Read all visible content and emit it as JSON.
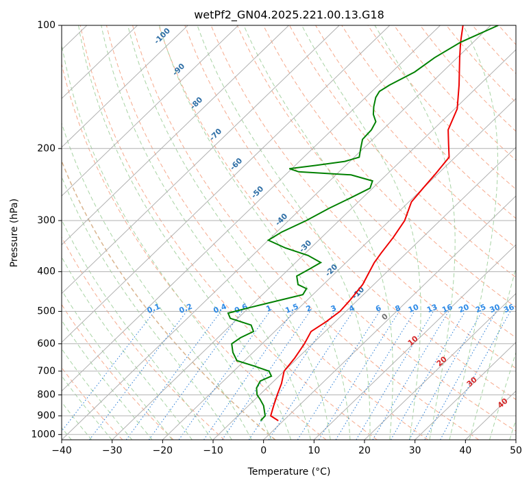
{
  "chart_data": {
    "type": "skew-t",
    "title": "wetPf2_GN04.2025.221.00.13.G18",
    "xlabel": "Temperature (°C)",
    "ylabel": "Pressure (hPa)",
    "xlim": [
      -40,
      50
    ],
    "ylim": [
      1030,
      100
    ],
    "x_ticks": [
      -40,
      -30,
      -20,
      -10,
      0,
      10,
      20,
      30,
      40,
      50
    ],
    "y_ticks": [
      100,
      200,
      300,
      400,
      500,
      600,
      700,
      800,
      900,
      1000
    ],
    "grid": true,
    "series": [
      {
        "role": "temperature",
        "color": "#ee0000",
        "points": [
          [
            925,
            -1.0
          ],
          [
            900,
            -3.5
          ],
          [
            850,
            -5.0
          ],
          [
            800,
            -6.5
          ],
          [
            750,
            -8.0
          ],
          [
            700,
            -10.0
          ],
          [
            650,
            -10.6
          ],
          [
            600,
            -11.6
          ],
          [
            560,
            -12.8
          ],
          [
            530,
            -11.8
          ],
          [
            500,
            -11.2
          ],
          [
            470,
            -11.5
          ],
          [
            430,
            -12.2
          ],
          [
            400,
            -13.5
          ],
          [
            380,
            -14.4
          ],
          [
            360,
            -15.0
          ],
          [
            330,
            -15.8
          ],
          [
            300,
            -17.0
          ],
          [
            270,
            -19.5
          ],
          [
            250,
            -20.0
          ],
          [
            230,
            -20.5
          ],
          [
            210,
            -21.2
          ],
          [
            195,
            -24.0
          ],
          [
            180,
            -27.0
          ],
          [
            160,
            -29.5
          ],
          [
            140,
            -34.0
          ],
          [
            120,
            -39.5
          ],
          [
            110,
            -42.5
          ],
          [
            100,
            -45.5
          ]
        ]
      },
      {
        "role": "dewpoint",
        "color": "#008000",
        "points": [
          [
            925,
            -4.5
          ],
          [
            900,
            -4.6
          ],
          [
            850,
            -7.0
          ],
          [
            820,
            -9.0
          ],
          [
            800,
            -10.5
          ],
          [
            770,
            -12.0
          ],
          [
            740,
            -12.7
          ],
          [
            720,
            -11.5
          ],
          [
            700,
            -13.0
          ],
          [
            680,
            -17.0
          ],
          [
            660,
            -21.5
          ],
          [
            630,
            -24.0
          ],
          [
            600,
            -26.0
          ],
          [
            580,
            -25.5
          ],
          [
            560,
            -24.2
          ],
          [
            540,
            -26.0
          ],
          [
            520,
            -31.5
          ],
          [
            505,
            -33.0
          ],
          [
            490,
            -30.0
          ],
          [
            470,
            -25.5
          ],
          [
            455,
            -22.0
          ],
          [
            440,
            -22.5
          ],
          [
            430,
            -25.0
          ],
          [
            410,
            -27.0
          ],
          [
            395,
            -26.0
          ],
          [
            380,
            -25.0
          ],
          [
            365,
            -29.0
          ],
          [
            350,
            -35.0
          ],
          [
            335,
            -40.0
          ],
          [
            320,
            -39.0
          ],
          [
            300,
            -36.5
          ],
          [
            280,
            -34.5
          ],
          [
            265,
            -32.5
          ],
          [
            250,
            -30.5
          ],
          [
            240,
            -31.5
          ],
          [
            232,
            -37.0
          ],
          [
            228,
            -48.0
          ],
          [
            224,
            -50.5
          ],
          [
            220,
            -46.0
          ],
          [
            215,
            -41.0
          ],
          [
            210,
            -39.0
          ],
          [
            200,
            -40.5
          ],
          [
            190,
            -42.0
          ],
          [
            180,
            -42.2
          ],
          [
            172,
            -43.0
          ],
          [
            165,
            -45.0
          ],
          [
            158,
            -46.5
          ],
          [
            150,
            -48.0
          ],
          [
            145,
            -48.5
          ],
          [
            140,
            -47.8
          ],
          [
            130,
            -45.5
          ],
          [
            120,
            -44.5
          ],
          [
            110,
            -42.5
          ],
          [
            100,
            -38.5
          ]
        ]
      }
    ],
    "overlays": {
      "dry_adiabat_labels": [
        "-100",
        "-90",
        "-80",
        "-70",
        "-60",
        "-50",
        "-40",
        "-30",
        "-20",
        "-10"
      ],
      "mixing_ratio_labels": [
        "0.1",
        "0.2",
        "0.4",
        "0.6",
        "1",
        "1.5",
        "2",
        "3",
        "4",
        "6",
        "8",
        "10",
        "13",
        "16",
        "20",
        "25",
        "30",
        "36"
      ],
      "moist_adiabat_labels": [
        "0",
        "10",
        "20",
        "30",
        "40"
      ]
    }
  }
}
